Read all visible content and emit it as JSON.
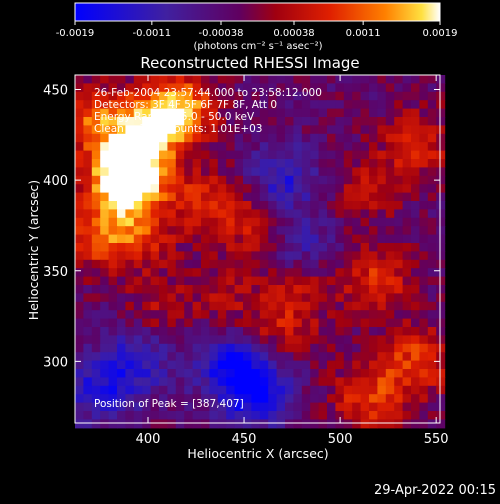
{
  "chart_data": {
    "type": "heatmap",
    "title": "Reconstructed RHESSI Image",
    "xlabel": "Heliocentric X (arcsec)",
    "ylabel": "Heliocentric Y (arcsec)",
    "xlim": [
      362,
      552
    ],
    "ylim": [
      266,
      458
    ],
    "xticks": [
      400,
      450,
      500,
      550
    ],
    "yticks": [
      300,
      350,
      400,
      450
    ],
    "grid": false,
    "colorbar": {
      "ticks": [
        "-0.0019",
        "-0.0011",
        "-0.00038",
        "0.00038",
        "0.0011",
        "0.0019"
      ],
      "tick_values": [
        -0.0019,
        -0.0011,
        -0.00038,
        0.00038,
        0.0011,
        0.0019
      ],
      "range": [
        -0.0019,
        0.0019
      ],
      "unit_label": "(photons cm⁻² s⁻¹ asec⁻²)",
      "colormap": "blue-purple-red-orange-yellow-white"
    },
    "annotations": [
      "26-Feb-2004 23:57:44.000  to 23:58:12.000",
      "Detectors: 3F 4F 5F 6F 7F 8F, Att 0",
      "Energy Range: 25.0 - 50.0 keV",
      "Clean     Total counts: 1.01E+03"
    ],
    "peak_label": "Position of Peak = [387,407]",
    "peak_position": [
      387,
      407
    ],
    "bright_regions": [
      {
        "x": 392,
        "y": 405,
        "level": 0.95
      },
      {
        "x": 388,
        "y": 400,
        "level": 0.9
      },
      {
        "x": 402,
        "y": 430,
        "level": 0.85
      },
      {
        "x": 418,
        "y": 440,
        "level": 0.8
      },
      {
        "x": 372,
        "y": 432,
        "level": 0.7
      },
      {
        "x": 372,
        "y": 370,
        "level": 0.6
      },
      {
        "x": 395,
        "y": 370,
        "level": 0.55
      },
      {
        "x": 430,
        "y": 388,
        "level": 0.5
      },
      {
        "x": 455,
        "y": 375,
        "level": 0.4
      },
      {
        "x": 480,
        "y": 345,
        "level": 0.45
      },
      {
        "x": 520,
        "y": 345,
        "level": 0.55
      },
      {
        "x": 540,
        "y": 420,
        "level": 0.5
      },
      {
        "x": 515,
        "y": 395,
        "level": 0.35
      },
      {
        "x": 540,
        "y": 300,
        "level": 0.6
      },
      {
        "x": 515,
        "y": 280,
        "level": 0.6
      },
      {
        "x": 470,
        "y": 318,
        "level": 0.4
      },
      {
        "x": 440,
        "y": 335,
        "level": 0.3
      },
      {
        "x": 405,
        "y": 330,
        "level": 0.3
      }
    ],
    "dim_regions": [
      {
        "x": 455,
        "y": 285,
        "level": -0.9
      },
      {
        "x": 470,
        "y": 400,
        "level": -0.55
      },
      {
        "x": 395,
        "y": 300,
        "level": -0.5
      },
      {
        "x": 480,
        "y": 360,
        "level": -0.5
      },
      {
        "x": 375,
        "y": 285,
        "level": -0.55
      },
      {
        "x": 440,
        "y": 300,
        "level": -0.5
      }
    ]
  },
  "footer": {
    "date": "29-Apr-2022 00:15"
  }
}
